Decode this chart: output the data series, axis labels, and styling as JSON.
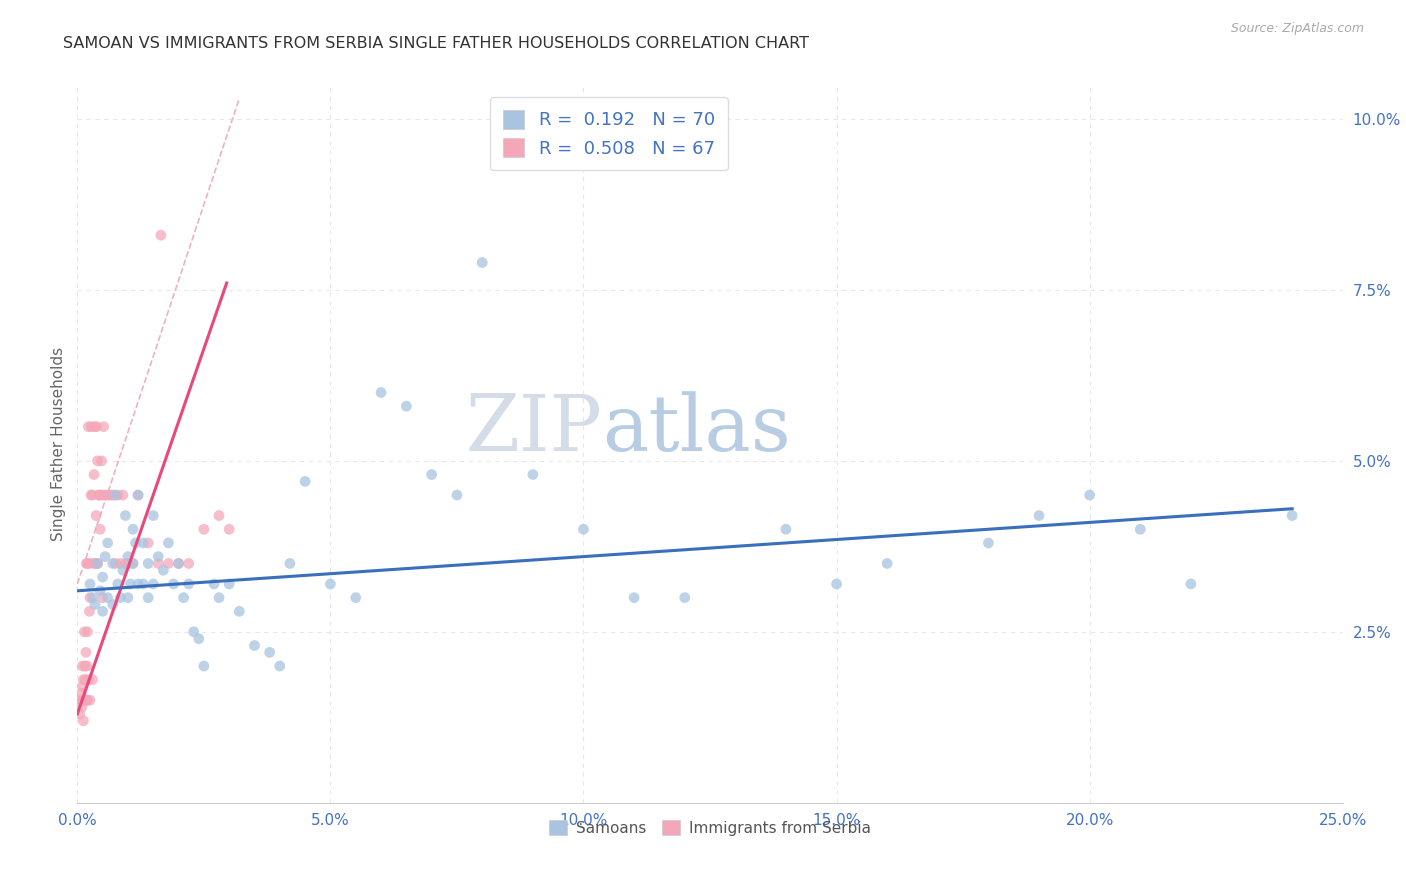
{
  "title": "SAMOAN VS IMMIGRANTS FROM SERBIA SINGLE FATHER HOUSEHOLDS CORRELATION CHART",
  "source": "Source: ZipAtlas.com",
  "xlabel_ticks": [
    "0.0%",
    "5.0%",
    "10.0%",
    "15.0%",
    "20.0%",
    "25.0%"
  ],
  "xlabel_vals": [
    0.0,
    5.0,
    10.0,
    15.0,
    20.0,
    25.0
  ],
  "ylabel_ticks": [
    "2.5%",
    "5.0%",
    "7.5%",
    "10.0%"
  ],
  "ylabel_vals": [
    2.5,
    5.0,
    7.5,
    10.0
  ],
  "ylabel_label": "Single Father Households",
  "xlim": [
    0.0,
    25.0
  ],
  "ylim": [
    0.0,
    10.5
  ],
  "samoans_R": 0.192,
  "samoans_N": 70,
  "serbia_R": 0.508,
  "serbia_N": 67,
  "samoans_color": "#a8c4e0",
  "serbia_color": "#f4a7b9",
  "samoans_line_color": "#3a6fbd",
  "serbia_line_color": "#e8497a",
  "dashed_color": "#f0b0c0",
  "watermark_zip": "ZIP",
  "watermark_atlas": "atlas",
  "watermark_zip_color": "#d0d8e8",
  "watermark_atlas_color": "#b0c8e8",
  "background_color": "#ffffff",
  "grid_color": "#e8e8e8",
  "samoans_x": [
    0.25,
    0.3,
    0.35,
    0.4,
    0.45,
    0.5,
    0.5,
    0.55,
    0.6,
    0.6,
    0.7,
    0.7,
    0.75,
    0.8,
    0.85,
    0.9,
    0.95,
    1.0,
    1.0,
    1.05,
    1.1,
    1.1,
    1.15,
    1.2,
    1.2,
    1.3,
    1.3,
    1.4,
    1.4,
    1.5,
    1.5,
    1.6,
    1.7,
    1.8,
    1.9,
    2.0,
    2.1,
    2.2,
    2.3,
    2.4,
    2.5,
    2.7,
    2.8,
    3.0,
    3.2,
    3.5,
    3.8,
    4.0,
    4.2,
    4.5,
    5.0,
    5.5,
    6.0,
    6.5,
    7.0,
    7.5,
    8.0,
    9.0,
    10.0,
    11.0,
    12.0,
    14.0,
    15.0,
    16.0,
    18.0,
    19.0,
    20.0,
    21.0,
    22.0,
    24.0
  ],
  "samoans_y": [
    3.2,
    3.0,
    2.9,
    3.5,
    3.1,
    2.8,
    3.3,
    3.6,
    3.0,
    3.8,
    2.9,
    3.5,
    4.5,
    3.2,
    3.0,
    3.4,
    4.2,
    3.0,
    3.6,
    3.2,
    3.5,
    4.0,
    3.8,
    3.2,
    4.5,
    3.2,
    3.8,
    3.5,
    3.0,
    3.2,
    4.2,
    3.6,
    3.4,
    3.8,
    3.2,
    3.5,
    3.0,
    3.2,
    2.5,
    2.4,
    2.0,
    3.2,
    3.0,
    3.2,
    2.8,
    2.3,
    2.2,
    2.0,
    3.5,
    4.7,
    3.2,
    3.0,
    6.0,
    5.8,
    4.8,
    4.5,
    7.9,
    4.8,
    4.0,
    3.0,
    3.0,
    4.0,
    3.2,
    3.5,
    3.8,
    4.2,
    4.5,
    4.0,
    3.2,
    4.2
  ],
  "serbia_x": [
    0.05,
    0.07,
    0.08,
    0.09,
    0.1,
    0.1,
    0.1,
    0.12,
    0.12,
    0.13,
    0.14,
    0.15,
    0.15,
    0.16,
    0.17,
    0.18,
    0.18,
    0.19,
    0.2,
    0.2,
    0.2,
    0.22,
    0.22,
    0.23,
    0.24,
    0.25,
    0.25,
    0.27,
    0.28,
    0.3,
    0.3,
    0.32,
    0.33,
    0.35,
    0.35,
    0.37,
    0.38,
    0.4,
    0.4,
    0.42,
    0.43,
    0.45,
    0.45,
    0.48,
    0.5,
    0.5,
    0.52,
    0.55,
    0.6,
    0.65,
    0.7,
    0.75,
    0.8,
    0.85,
    0.9,
    0.95,
    1.0,
    1.1,
    1.2,
    1.4,
    1.6,
    1.8,
    2.0,
    2.2,
    2.5,
    2.8,
    3.0
  ],
  "serbia_y": [
    1.3,
    1.5,
    1.6,
    1.4,
    1.5,
    1.7,
    2.0,
    1.2,
    1.8,
    1.5,
    2.5,
    1.5,
    2.0,
    1.8,
    2.2,
    1.5,
    3.5,
    2.0,
    1.5,
    2.5,
    3.5,
    5.5,
    1.8,
    3.5,
    2.8,
    1.5,
    3.0,
    4.5,
    5.5,
    1.8,
    4.5,
    3.5,
    4.8,
    3.5,
    5.5,
    4.2,
    5.5,
    3.5,
    5.0,
    4.5,
    4.5,
    4.0,
    4.5,
    5.0,
    3.0,
    4.5,
    5.5,
    4.5,
    4.5,
    4.5,
    4.5,
    3.5,
    4.5,
    3.5,
    4.5,
    3.5,
    3.5,
    3.5,
    4.5,
    3.8,
    3.5,
    3.5,
    3.5,
    3.5,
    4.0,
    4.2,
    4.0
  ],
  "serbia_outlier_x": [
    1.65
  ],
  "serbia_outlier_y": [
    8.3
  ],
  "samoans_line_x": [
    0.0,
    24.0
  ],
  "samoans_line_y": [
    3.1,
    4.3
  ],
  "serbia_line_x": [
    0.0,
    2.95
  ],
  "serbia_line_y": [
    1.3,
    7.6
  ],
  "dashed_line_x": [
    0.0,
    3.2
  ],
  "dashed_line_y": [
    3.2,
    10.3
  ]
}
